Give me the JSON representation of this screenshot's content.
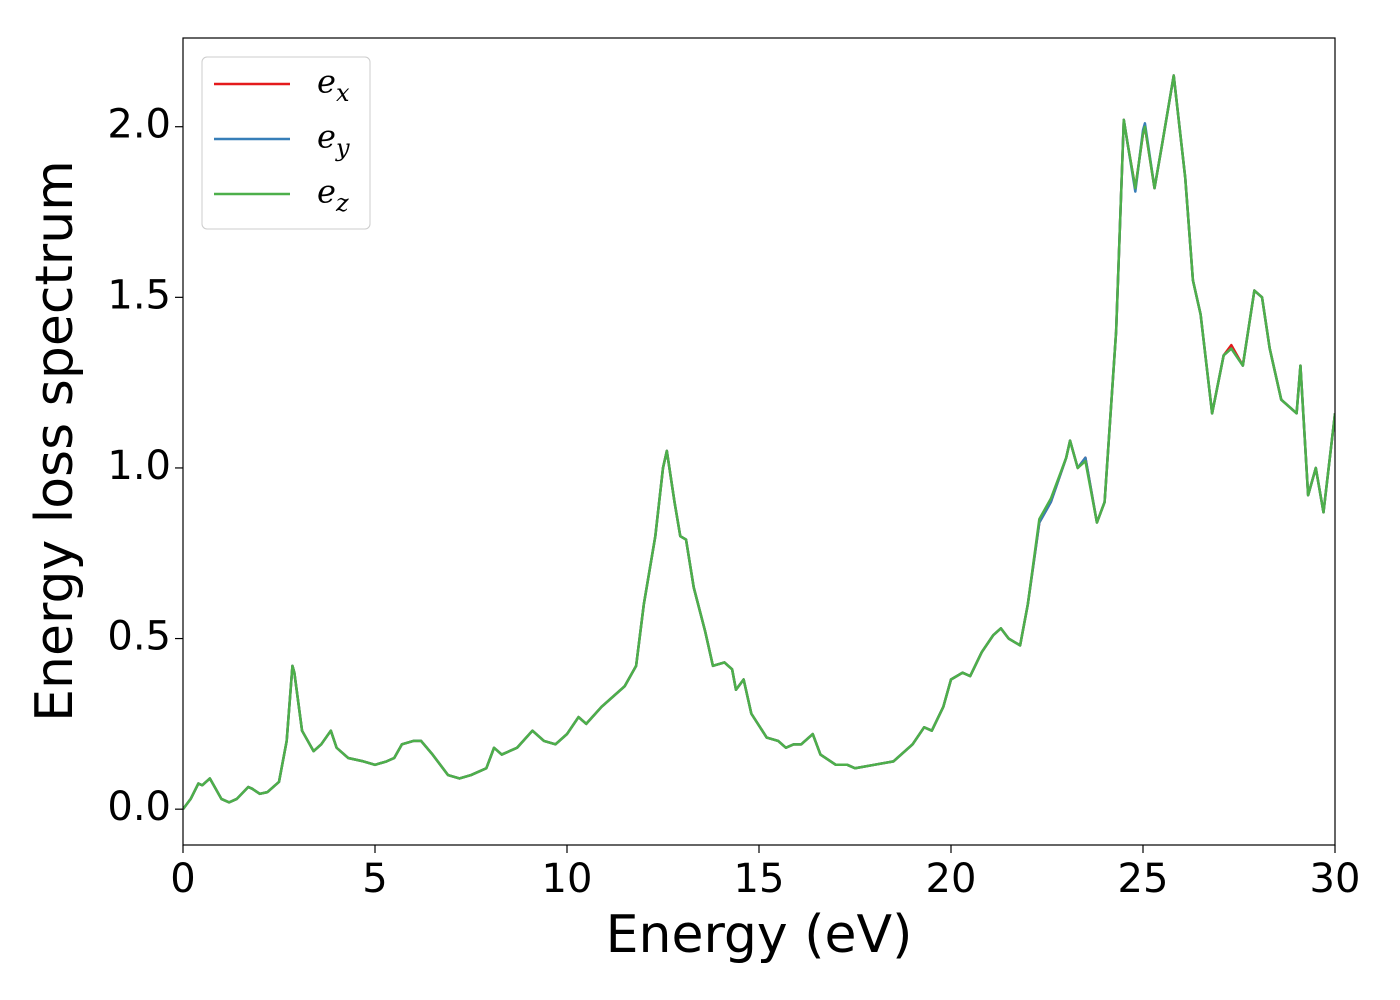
{
  "chart_data": {
    "type": "line",
    "xlabel": "Energy (eV)",
    "ylabel": "Energy loss spectrum",
    "x": [
      0,
      0.2,
      0.4,
      0.5,
      0.7,
      0.8,
      1.0,
      1.2,
      1.4,
      1.7,
      1.8,
      2.0,
      2.2,
      2.5,
      2.7,
      2.85,
      2.9,
      3.1,
      3.4,
      3.6,
      3.85,
      4.0,
      4.3,
      4.7,
      5.0,
      5.3,
      5.5,
      5.7,
      6.0,
      6.2,
      6.5,
      6.9,
      7.2,
      7.5,
      7.9,
      8.1,
      8.3,
      8.7,
      9.1,
      9.4,
      9.7,
      10.0,
      10.3,
      10.5,
      10.9,
      11.2,
      11.5,
      11.8,
      12.0,
      12.3,
      12.5,
      12.6,
      12.8,
      12.95,
      13.1,
      13.3,
      13.6,
      13.8,
      14.1,
      14.3,
      14.4,
      14.6,
      14.8,
      15.2,
      15.5,
      15.7,
      15.9,
      16.1,
      16.4,
      16.6,
      17.0,
      17.3,
      17.5,
      18.0,
      18.5,
      19.0,
      19.3,
      19.5,
      19.8,
      20.0,
      20.3,
      20.5,
      20.8,
      21.1,
      21.3,
      21.5,
      21.8,
      22.0,
      22.3,
      22.6,
      23.0,
      23.1,
      23.3,
      23.5,
      23.8,
      24.0,
      24.3,
      24.5,
      24.6,
      24.8,
      25.0,
      25.05,
      25.3,
      25.5,
      25.8,
      26.1,
      26.3,
      26.5,
      26.8,
      27.1,
      27.3,
      27.6,
      27.9,
      28.1,
      28.3,
      28.6,
      29.0,
      29.1,
      29.3,
      29.5,
      29.7,
      30.0
    ],
    "series": [
      {
        "name": "e_x",
        "color": "#e41a1c",
        "values": [
          0,
          0.03,
          0.075,
          0.07,
          0.09,
          0.07,
          0.03,
          0.02,
          0.03,
          0.065,
          0.06,
          0.045,
          0.05,
          0.08,
          0.2,
          0.42,
          0.4,
          0.23,
          0.17,
          0.19,
          0.23,
          0.18,
          0.15,
          0.14,
          0.13,
          0.14,
          0.15,
          0.19,
          0.2,
          0.2,
          0.16,
          0.1,
          0.09,
          0.1,
          0.12,
          0.18,
          0.16,
          0.18,
          0.23,
          0.2,
          0.19,
          0.22,
          0.27,
          0.25,
          0.3,
          0.33,
          0.36,
          0.42,
          0.6,
          0.8,
          1.0,
          1.05,
          0.9,
          0.8,
          0.79,
          0.65,
          0.52,
          0.42,
          0.43,
          0.41,
          0.35,
          0.38,
          0.28,
          0.21,
          0.2,
          0.18,
          0.19,
          0.19,
          0.22,
          0.16,
          0.13,
          0.13,
          0.12,
          0.13,
          0.14,
          0.19,
          0.24,
          0.23,
          0.3,
          0.38,
          0.4,
          0.39,
          0.46,
          0.51,
          0.53,
          0.5,
          0.48,
          0.6,
          0.84,
          0.9,
          1.03,
          1.08,
          1.0,
          1.03,
          0.84,
          0.9,
          1.4,
          2.02,
          1.95,
          1.82,
          1.98,
          2.0,
          1.82,
          1.95,
          2.15,
          1.85,
          1.55,
          1.45,
          1.16,
          1.33,
          1.36,
          1.3,
          1.52,
          1.5,
          1.35,
          1.2,
          1.16,
          1.3,
          0.92,
          1.0,
          0.87,
          1.16
        ]
      },
      {
        "name": "e_y",
        "color": "#377eb8",
        "values": [
          0,
          0.03,
          0.075,
          0.07,
          0.09,
          0.07,
          0.03,
          0.02,
          0.03,
          0.065,
          0.06,
          0.045,
          0.05,
          0.08,
          0.2,
          0.42,
          0.4,
          0.23,
          0.17,
          0.19,
          0.23,
          0.18,
          0.15,
          0.14,
          0.13,
          0.14,
          0.15,
          0.19,
          0.2,
          0.2,
          0.16,
          0.1,
          0.09,
          0.1,
          0.12,
          0.18,
          0.16,
          0.18,
          0.23,
          0.2,
          0.19,
          0.22,
          0.27,
          0.25,
          0.3,
          0.33,
          0.36,
          0.42,
          0.6,
          0.8,
          1.0,
          1.05,
          0.9,
          0.8,
          0.79,
          0.65,
          0.52,
          0.42,
          0.43,
          0.41,
          0.35,
          0.38,
          0.28,
          0.21,
          0.2,
          0.18,
          0.19,
          0.19,
          0.22,
          0.16,
          0.13,
          0.13,
          0.12,
          0.13,
          0.14,
          0.19,
          0.24,
          0.23,
          0.3,
          0.38,
          0.4,
          0.39,
          0.46,
          0.51,
          0.53,
          0.5,
          0.48,
          0.6,
          0.84,
          0.9,
          1.03,
          1.08,
          1.0,
          1.03,
          0.84,
          0.9,
          1.4,
          2.02,
          1.95,
          1.81,
          1.99,
          2.01,
          1.82,
          1.95,
          2.15,
          1.85,
          1.55,
          1.45,
          1.16,
          1.33,
          1.35,
          1.3,
          1.52,
          1.5,
          1.35,
          1.2,
          1.16,
          1.3,
          0.92,
          1.0,
          0.87,
          1.16
        ]
      },
      {
        "name": "e_z",
        "color": "#4daf4a",
        "values": [
          0,
          0.03,
          0.075,
          0.07,
          0.09,
          0.07,
          0.03,
          0.02,
          0.03,
          0.065,
          0.06,
          0.045,
          0.05,
          0.08,
          0.2,
          0.42,
          0.4,
          0.23,
          0.17,
          0.19,
          0.23,
          0.18,
          0.15,
          0.14,
          0.13,
          0.14,
          0.15,
          0.19,
          0.2,
          0.2,
          0.16,
          0.1,
          0.09,
          0.1,
          0.12,
          0.18,
          0.16,
          0.18,
          0.23,
          0.2,
          0.19,
          0.22,
          0.27,
          0.25,
          0.3,
          0.33,
          0.36,
          0.42,
          0.6,
          0.8,
          1.0,
          1.05,
          0.9,
          0.8,
          0.79,
          0.65,
          0.52,
          0.42,
          0.43,
          0.41,
          0.35,
          0.38,
          0.28,
          0.21,
          0.2,
          0.18,
          0.19,
          0.19,
          0.22,
          0.16,
          0.13,
          0.13,
          0.12,
          0.13,
          0.14,
          0.19,
          0.24,
          0.23,
          0.3,
          0.38,
          0.4,
          0.39,
          0.46,
          0.51,
          0.53,
          0.5,
          0.48,
          0.6,
          0.85,
          0.91,
          1.03,
          1.08,
          1.0,
          1.02,
          0.84,
          0.9,
          1.4,
          2.02,
          1.95,
          1.82,
          1.98,
          2.0,
          1.82,
          1.95,
          2.15,
          1.85,
          1.55,
          1.45,
          1.16,
          1.33,
          1.35,
          1.3,
          1.52,
          1.5,
          1.35,
          1.2,
          1.16,
          1.3,
          0.92,
          1.0,
          0.87,
          1.16
        ]
      }
    ],
    "xlim": [
      0,
      30
    ],
    "xticks": [
      0,
      5,
      10,
      15,
      20,
      25,
      30
    ],
    "ylim": [
      -0.105,
      2.26
    ],
    "yticks": [
      {
        "value": 0,
        "label": "0.0"
      },
      {
        "value": 0.5,
        "label": "0.5"
      },
      {
        "value": 1,
        "label": "1.0"
      },
      {
        "value": 1.5,
        "label": "1.5"
      },
      {
        "value": 2,
        "label": "2.0"
      }
    ],
    "legend": "upper left",
    "grid": false
  }
}
